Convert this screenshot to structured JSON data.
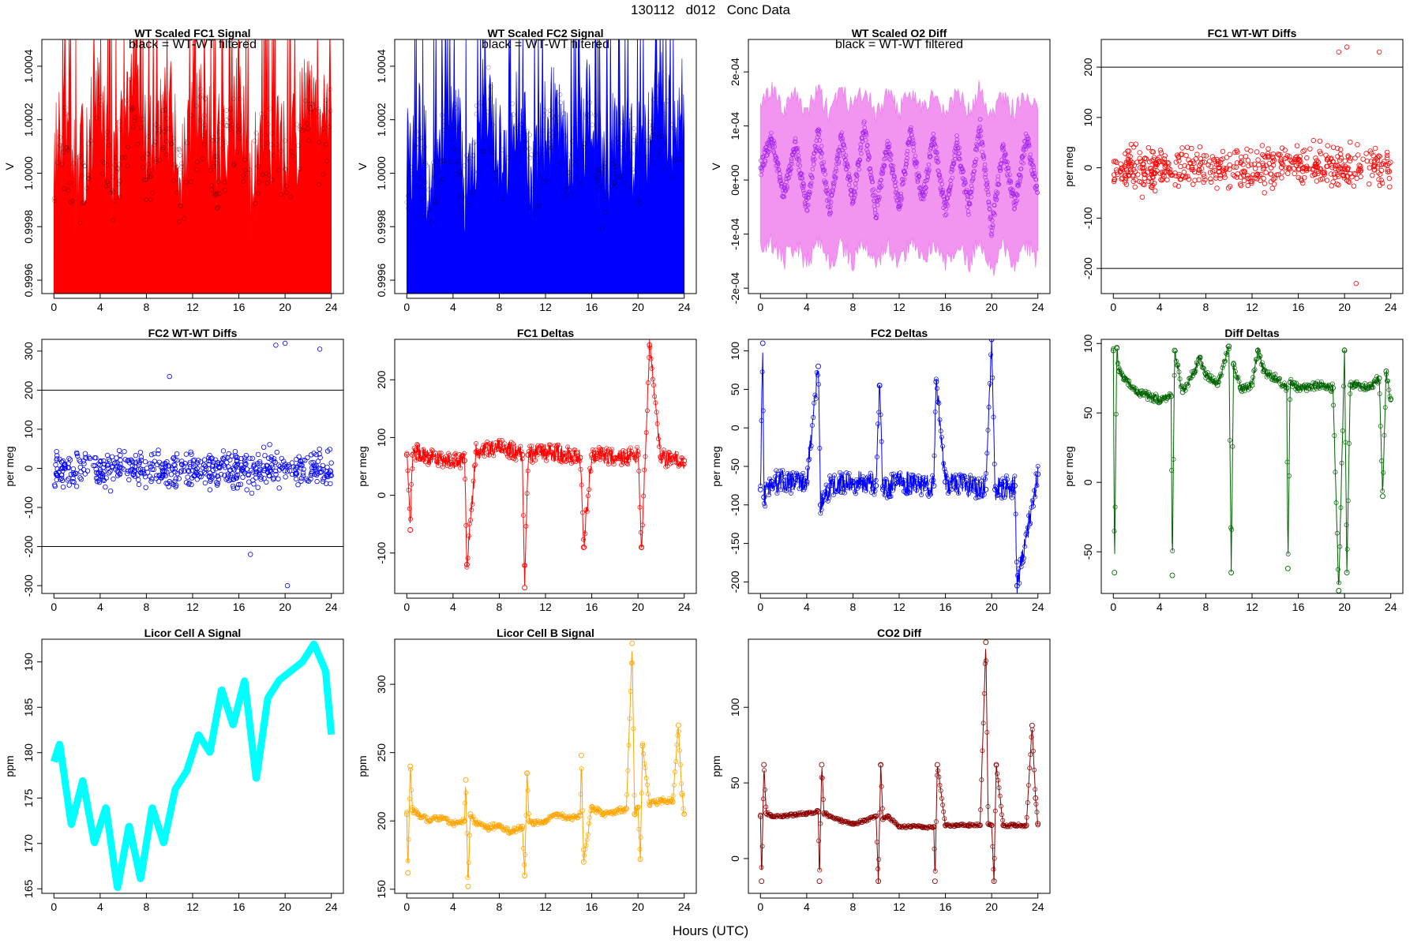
{
  "page": {
    "title": "130112   d012   Conc Data",
    "xlabel": "Hours (UTC)"
  },
  "chart_data": [
    {
      "type": "line",
      "title": "WT Scaled FC1 Signal",
      "annotation": "black = WT-WT filtered",
      "ylabel": "V",
      "xlim": [
        0,
        24
      ],
      "ylim": [
        0.99955,
        1.0005
      ],
      "xticks": [
        0,
        4,
        8,
        12,
        16,
        20,
        24
      ],
      "yticks": [
        0.9996,
        0.9998,
        1.0,
        1.0002,
        1.0004
      ],
      "ytick_labels": [
        "0.9996",
        "0.9998",
        "1.0000",
        "1.0002",
        "1.0004"
      ],
      "color": "#ff0000",
      "overlay_color": "#000000",
      "render": "signal",
      "series": [
        {
          "x": [
            0,
            1,
            2,
            3,
            4,
            5,
            6,
            7,
            8,
            9,
            10,
            11,
            12,
            13,
            14,
            15,
            16,
            17,
            18,
            19,
            20,
            21,
            22,
            23,
            24
          ],
          "y": [
            1.0,
            1.0001,
            0.9999,
            1.0001,
            1.0002,
            0.9999,
            1.0001,
            1.0003,
            1.0,
            1.0001,
            1.0002,
            0.9999,
            1.0001,
            1.0002,
            1.0,
            1.0001,
            1.0002,
            0.9999,
            1.0001,
            1.0001,
            1.0,
            1.0001,
            1.0002,
            1.0001,
            1.0002
          ]
        }
      ]
    },
    {
      "type": "line",
      "title": "WT Scaled FC2 Signal",
      "annotation": "black = WT-WT filtered",
      "ylabel": "V",
      "xlim": [
        0,
        24
      ],
      "ylim": [
        0.99955,
        1.0005
      ],
      "xticks": [
        0,
        4,
        8,
        12,
        16,
        20,
        24
      ],
      "yticks": [
        0.9996,
        0.9998,
        1.0,
        1.0002,
        1.0004
      ],
      "ytick_labels": [
        "0.9996",
        "0.9998",
        "1.0000",
        "1.0002",
        "1.0004"
      ],
      "color": "#0000ff",
      "overlay_color": "#000000",
      "render": "signal",
      "series": [
        {
          "x": [
            0,
            1,
            2,
            3,
            4,
            5,
            6,
            7,
            8,
            9,
            10,
            11,
            12,
            13,
            14,
            15,
            16,
            17,
            18,
            19,
            20,
            21,
            22,
            23,
            24
          ],
          "y": [
            1.0,
            1.0001,
            0.9999,
            1.0001,
            1.0002,
            0.9999,
            1.0001,
            1.0003,
            1.0,
            1.0001,
            1.0002,
            0.9999,
            1.0001,
            1.0002,
            1.0,
            1.0001,
            1.0002,
            0.9999,
            1.0001,
            1.0001,
            1.0,
            1.0001,
            1.0002,
            1.0001,
            1.0002
          ]
        }
      ]
    },
    {
      "type": "line",
      "title": "WT Scaled O2 Diff",
      "annotation": "black = WT-WT filtered",
      "ylabel": "V",
      "xlim": [
        0,
        24
      ],
      "ylim": [
        -0.00021,
        0.00026
      ],
      "xticks": [
        0,
        4,
        8,
        12,
        16,
        20,
        24
      ],
      "yticks": [
        -0.0002,
        -0.0001,
        0,
        0.0001,
        0.0002
      ],
      "ytick_labels": [
        "-2e-04",
        "-1e-04",
        "0e+00",
        "1e-04",
        "2e-04"
      ],
      "color": "#ee82ee",
      "overlay_color": "#a020f0",
      "render": "band",
      "series": [
        {
          "x": [
            0,
            1,
            2,
            3,
            4,
            5,
            6,
            7,
            8,
            9,
            10,
            11,
            12,
            13,
            14,
            15,
            16,
            17,
            18,
            19,
            20,
            21,
            22,
            23,
            24
          ],
          "y": [
            2e-05,
            8e-05,
            -3e-05,
            7e-05,
            -5e-05,
            9e-05,
            -6e-05,
            8e-05,
            -4e-05,
            0.0001,
            -6e-05,
            7e-05,
            -5e-05,
            9e-05,
            -4e-05,
            8e-05,
            -6e-05,
            7e-05,
            -5e-05,
            0.0001,
            -9e-05,
            6e-05,
            -5e-05,
            8e-05,
            -3e-05
          ]
        }
      ]
    },
    {
      "type": "scatter",
      "title": "FC1 WT-WT Diffs",
      "ylabel": "per meg",
      "xlim": [
        0,
        24
      ],
      "ylim": [
        -250,
        255
      ],
      "xticks": [
        0,
        4,
        8,
        12,
        16,
        20,
        24
      ],
      "yticks": [
        -200,
        -100,
        0,
        100,
        200
      ],
      "ytick_labels": [
        "-200",
        "-100",
        "0",
        "100",
        "200"
      ],
      "hlines": [
        200,
        -200
      ],
      "color": "#ff0000",
      "render": "points",
      "spread": 40,
      "series": [
        {
          "x": [
            0,
            2,
            4,
            6,
            8,
            10,
            12,
            14,
            16,
            18,
            19.5,
            20.2,
            21,
            22,
            23,
            24
          ],
          "y": [
            0,
            5,
            -5,
            10,
            0,
            20,
            0,
            -10,
            5,
            0,
            230,
            240,
            -230,
            10,
            230,
            0
          ]
        }
      ]
    },
    {
      "type": "scatter",
      "title": "FC2 WT-WT Diffs",
      "ylabel": "per meg",
      "xlim": [
        0,
        24
      ],
      "ylim": [
        -320,
        330
      ],
      "xticks": [
        0,
        4,
        8,
        12,
        16,
        20,
        24
      ],
      "yticks": [
        -300,
        -200,
        -100,
        0,
        100,
        200,
        300
      ],
      "ytick_labels": [
        "-300",
        "-200",
        "-100",
        "0",
        "100",
        "200",
        "300"
      ],
      "hlines": [
        200,
        -200
      ],
      "color": "#0000ff",
      "render": "points",
      "spread": 45,
      "series": [
        {
          "x": [
            0,
            2,
            4,
            6,
            8,
            10,
            12,
            14,
            16,
            17,
            19.2,
            20,
            20.2,
            23,
            24
          ],
          "y": [
            0,
            10,
            -5,
            5,
            0,
            235,
            0,
            -10,
            0,
            -220,
            315,
            320,
            -300,
            305,
            0
          ]
        }
      ]
    },
    {
      "type": "line",
      "title": "FC1 Deltas",
      "ylabel": "per meg",
      "xlim": [
        0,
        24
      ],
      "ylim": [
        -170,
        270
      ],
      "xticks": [
        0,
        4,
        8,
        12,
        16,
        20,
        24
      ],
      "yticks": [
        -100,
        0,
        100,
        200
      ],
      "ytick_labels": [
        "-100",
        "0",
        "100",
        "200"
      ],
      "color": "#ff0000",
      "render": "series",
      "noise": 15,
      "series": [
        {
          "x": [
            0,
            0.3,
            0.5,
            1,
            2,
            4,
            5,
            5.2,
            6,
            8,
            10,
            10.2,
            10.5,
            12,
            14,
            15,
            15.3,
            16,
            18,
            20,
            20.3,
            21,
            22,
            24
          ],
          "y": [
            70,
            -60,
            70,
            75,
            65,
            60,
            60,
            -120,
            75,
            85,
            70,
            -160,
            70,
            75,
            70,
            65,
            -90,
            70,
            65,
            70,
            -90,
            260,
            65,
            60
          ]
        }
      ]
    },
    {
      "type": "line",
      "title": "FC2 Deltas",
      "ylabel": "per meg",
      "xlim": [
        0,
        24
      ],
      "ylim": [
        -215,
        115
      ],
      "xticks": [
        0,
        4,
        8,
        12,
        16,
        20,
        24
      ],
      "yticks": [
        -200,
        -150,
        -100,
        -50,
        0,
        50,
        100
      ],
      "ytick_labels": [
        "-200",
        "-150",
        "-100",
        "-50",
        "0",
        "50",
        "100"
      ],
      "color": "#0000ff",
      "render": "series",
      "noise": 15,
      "series": [
        {
          "x": [
            0,
            0.2,
            0.3,
            1,
            4,
            5,
            5.2,
            6,
            8,
            10,
            10.3,
            10.6,
            12,
            15,
            15.2,
            16,
            19.5,
            20,
            20.3,
            22,
            22.2,
            24
          ],
          "y": [
            -80,
            110,
            -90,
            -70,
            -70,
            80,
            -100,
            -75,
            -70,
            -75,
            55,
            -80,
            -70,
            -75,
            60,
            -70,
            -80,
            115,
            -80,
            -75,
            -205,
            -60
          ]
        }
      ]
    },
    {
      "type": "line",
      "title": "Diff Deltas",
      "ylabel": "per meg",
      "xlim": [
        0,
        24
      ],
      "ylim": [
        -80,
        103
      ],
      "xticks": [
        0,
        4,
        8,
        12,
        16,
        20,
        24
      ],
      "yticks": [
        -50,
        0,
        50,
        100
      ],
      "ytick_labels": [
        "-50",
        "0",
        "50",
        "100"
      ],
      "color": "#006400",
      "render": "series",
      "noise": 3,
      "series": [
        {
          "x": [
            0,
            0.1,
            0.3,
            0.5,
            1,
            2,
            4,
            5,
            5.1,
            5.3,
            6,
            7,
            7.5,
            8,
            9,
            10,
            10.2,
            10.4,
            11,
            12,
            12.5,
            13,
            14,
            15,
            15.1,
            15.3,
            16,
            18,
            19,
            19.5,
            20,
            20.2,
            20.5,
            21,
            22,
            23,
            23.3,
            23.6,
            24
          ],
          "y": [
            95,
            -65,
            97,
            80,
            75,
            65,
            60,
            62,
            -67,
            95,
            65,
            80,
            90,
            78,
            70,
            98,
            -65,
            85,
            68,
            70,
            95,
            80,
            75,
            68,
            -62,
            72,
            68,
            70,
            68,
            -78,
            95,
            -65,
            70,
            70,
            68,
            75,
            -10,
            80,
            60
          ]
        }
      ]
    },
    {
      "type": "line",
      "title": "Licor Cell A Signal",
      "ylabel": "ppm",
      "xlim": [
        0,
        24
      ],
      "ylim": [
        164.5,
        192.5
      ],
      "xticks": [
        0,
        4,
        8,
        12,
        16,
        20,
        24
      ],
      "yticks": [
        165,
        170,
        175,
        180,
        185,
        190
      ],
      "ytick_labels": [
        "165",
        "170",
        "175",
        "180",
        "185",
        "190"
      ],
      "color": "#00ffff",
      "render": "thick",
      "width": 2.5,
      "series": [
        {
          "x": [
            0,
            0.5,
            1.5,
            2.5,
            3.5,
            4.5,
            5.5,
            6.5,
            7.5,
            8.5,
            9.5,
            10.5,
            11.5,
            12.5,
            13.5,
            14.5,
            15.5,
            16.5,
            17.5,
            18.5,
            19.5,
            20.5,
            21.5,
            22.5,
            23.5,
            24
          ],
          "y": [
            179,
            181,
            172,
            177,
            170,
            174,
            165,
            172,
            166,
            174,
            170,
            176,
            178,
            182,
            180,
            187,
            183,
            188,
            177,
            186,
            188,
            189,
            190,
            192,
            189,
            182
          ]
        }
      ]
    },
    {
      "type": "line",
      "title": "Licor Cell B Signal",
      "ylabel": "ppm",
      "xlim": [
        0,
        24
      ],
      "ylim": [
        147,
        333
      ],
      "xticks": [
        0,
        4,
        8,
        12,
        16,
        20,
        24
      ],
      "yticks": [
        150,
        200,
        250,
        300
      ],
      "ytick_labels": [
        "150",
        "200",
        "250",
        "300"
      ],
      "color": "#ffa500",
      "render": "series",
      "noise": 2,
      "series": [
        {
          "x": [
            0,
            0.1,
            0.3,
            0.5,
            1,
            2,
            3,
            4,
            5,
            5.1,
            5.3,
            5.5,
            6,
            7,
            8,
            9,
            10,
            10.2,
            10.4,
            10.6,
            11,
            12,
            13,
            14,
            15,
            15.1,
            15.3,
            16,
            17,
            18,
            19,
            19.5,
            19.7,
            20,
            20.2,
            20.4,
            21,
            22,
            23,
            23.5,
            23.8,
            24
          ],
          "y": [
            205,
            162,
            240,
            208,
            205,
            200,
            203,
            198,
            200,
            230,
            152,
            205,
            198,
            195,
            197,
            192,
            196,
            160,
            235,
            200,
            198,
            200,
            205,
            202,
            204,
            248,
            170,
            210,
            205,
            207,
            209,
            330,
            205,
            210,
            172,
            255,
            212,
            215,
            214,
            270,
            220,
            205
          ]
        }
      ]
    },
    {
      "type": "line",
      "title": "CO2 Diff",
      "ylabel": "ppm",
      "xlim": [
        0,
        24
      ],
      "ylim": [
        -23,
        145
      ],
      "xticks": [
        0,
        4,
        8,
        12,
        16,
        20,
        24
      ],
      "yticks": [
        0,
        50,
        100
      ],
      "ytick_labels": [
        "0",
        "50",
        "100"
      ],
      "color": "#8b0000",
      "render": "series",
      "noise": 1,
      "series": [
        {
          "x": [
            0,
            0.1,
            0.3,
            0.5,
            1,
            2,
            3,
            4,
            5,
            5.1,
            5.3,
            5.5,
            6,
            7,
            8,
            9,
            10,
            10.2,
            10.4,
            10.6,
            11,
            12,
            13,
            14,
            15,
            15.1,
            15.3,
            16,
            17,
            18,
            19,
            19.5,
            19.7,
            20,
            20.2,
            20.4,
            21,
            22,
            23,
            23.5,
            23.8,
            24
          ],
          "y": [
            28,
            -15,
            62,
            30,
            28,
            28,
            29,
            30,
            31,
            -15,
            62,
            30,
            28,
            25,
            23,
            25,
            28,
            -15,
            62,
            26,
            28,
            21,
            21,
            21,
            21,
            -15,
            62,
            22,
            22,
            22,
            22,
            143,
            23,
            22,
            -15,
            62,
            22,
            22,
            22,
            88,
            40,
            23
          ]
        }
      ]
    }
  ]
}
